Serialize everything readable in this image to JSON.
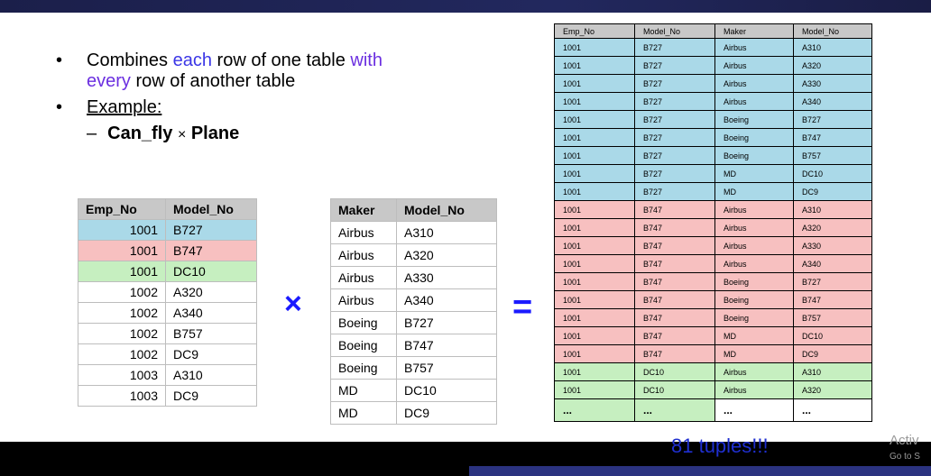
{
  "slide": {
    "bullet1_a": "Combines ",
    "bullet1_b": "each",
    "bullet1_c": " row of one table ",
    "bullet1_d": "with",
    "bullet1_e": "every",
    "bullet1_f": " row of another table",
    "bullet2": "Example:",
    "dash": "–",
    "expr_left": "Can_fly",
    "expr_op": "×",
    "expr_right": "Plane",
    "op_times": "×",
    "op_equals": "=",
    "result_note": "81 tuples!!!"
  },
  "can_fly": {
    "headers": [
      "Emp_No",
      "Model_No"
    ],
    "rows": [
      [
        "1001",
        "B727"
      ],
      [
        "1001",
        "B747"
      ],
      [
        "1001",
        "DC10"
      ],
      [
        "1002",
        "A320"
      ],
      [
        "1002",
        "A340"
      ],
      [
        "1002",
        "B757"
      ],
      [
        "1002",
        "DC9"
      ],
      [
        "1003",
        "A310"
      ],
      [
        "1003",
        "DC9"
      ]
    ]
  },
  "plane": {
    "headers": [
      "Maker",
      "Model_No"
    ],
    "rows": [
      [
        "Airbus",
        "A310"
      ],
      [
        "Airbus",
        "A320"
      ],
      [
        "Airbus",
        "A330"
      ],
      [
        "Airbus",
        "A340"
      ],
      [
        "Boeing",
        "B727"
      ],
      [
        "Boeing",
        "B747"
      ],
      [
        "Boeing",
        "B757"
      ],
      [
        "MD",
        "DC10"
      ],
      [
        "MD",
        "DC9"
      ]
    ]
  },
  "product": {
    "headers": [
      "Emp_No",
      "Model_No",
      "Maker",
      "Model_No"
    ],
    "rows": [
      [
        "1001",
        "B727",
        "Airbus",
        "A310"
      ],
      [
        "1001",
        "B727",
        "Airbus",
        "A320"
      ],
      [
        "1001",
        "B727",
        "Airbus",
        "A330"
      ],
      [
        "1001",
        "B727",
        "Airbus",
        "A340"
      ],
      [
        "1001",
        "B727",
        "Boeing",
        "B727"
      ],
      [
        "1001",
        "B727",
        "Boeing",
        "B747"
      ],
      [
        "1001",
        "B727",
        "Boeing",
        "B757"
      ],
      [
        "1001",
        "B727",
        "MD",
        "DC10"
      ],
      [
        "1001",
        "B727",
        "MD",
        "DC9"
      ],
      [
        "1001",
        "B747",
        "Airbus",
        "A310"
      ],
      [
        "1001",
        "B747",
        "Airbus",
        "A320"
      ],
      [
        "1001",
        "B747",
        "Airbus",
        "A330"
      ],
      [
        "1001",
        "B747",
        "Airbus",
        "A340"
      ],
      [
        "1001",
        "B747",
        "Boeing",
        "B727"
      ],
      [
        "1001",
        "B747",
        "Boeing",
        "B747"
      ],
      [
        "1001",
        "B747",
        "Boeing",
        "B757"
      ],
      [
        "1001",
        "B747",
        "MD",
        "DC10"
      ],
      [
        "1001",
        "B747",
        "MD",
        "DC9"
      ],
      [
        "1001",
        "DC10",
        "Airbus",
        "A310"
      ],
      [
        "1001",
        "DC10",
        "Airbus",
        "A320"
      ]
    ],
    "ellipsis": "..."
  },
  "watermark": {
    "activate": "Activ",
    "goto": "Go to S"
  },
  "colors": {
    "blue_row": "#aad9e8",
    "red_row": "#f7c0c0",
    "green_row": "#c6efc0",
    "accent": "#1a1aff"
  }
}
